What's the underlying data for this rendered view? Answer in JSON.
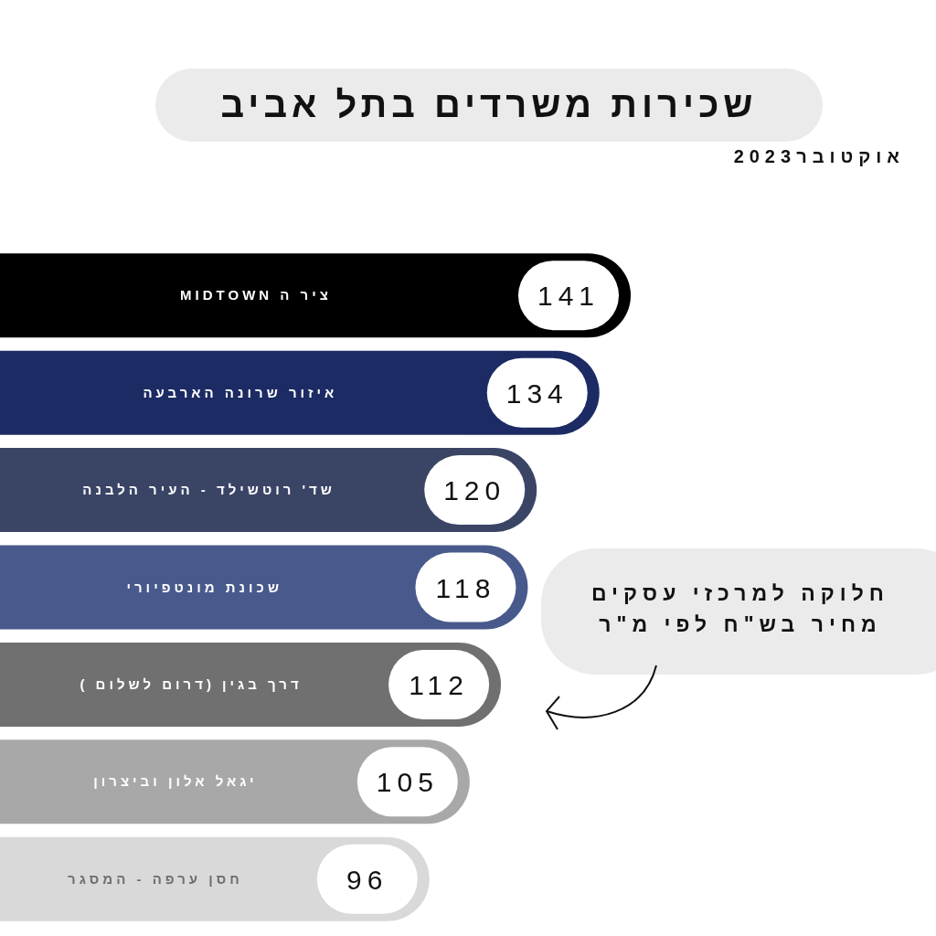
{
  "chart_data": {
    "type": "bar",
    "orientation": "horizontal",
    "title": "שכירות משרדים בתל אביב",
    "subtitle": "אוקטובר2023",
    "categories": [
      "ציר ה MIDTOWN",
      "איזור שרונה הארבעה",
      "שד' רוטשילד - העיר הלבנה",
      "שכונת מונטפיורי",
      "דרך בגין (דרום לשלום )",
      "יגאל אלון וביצרון",
      "חסן ערפה - המסגר"
    ],
    "values": [
      141,
      134,
      120,
      118,
      112,
      105,
      96
    ],
    "colors": [
      "#000000",
      "#1c2b63",
      "#3a4566",
      "#485a8c",
      "#707070",
      "#a8a8a8",
      "#d9d9d9"
    ],
    "data_labels": true,
    "annotations": [
      "חלוקה למרכזי עסקים מחיר בש\"ח לפי מ\"ר"
    ]
  }
}
